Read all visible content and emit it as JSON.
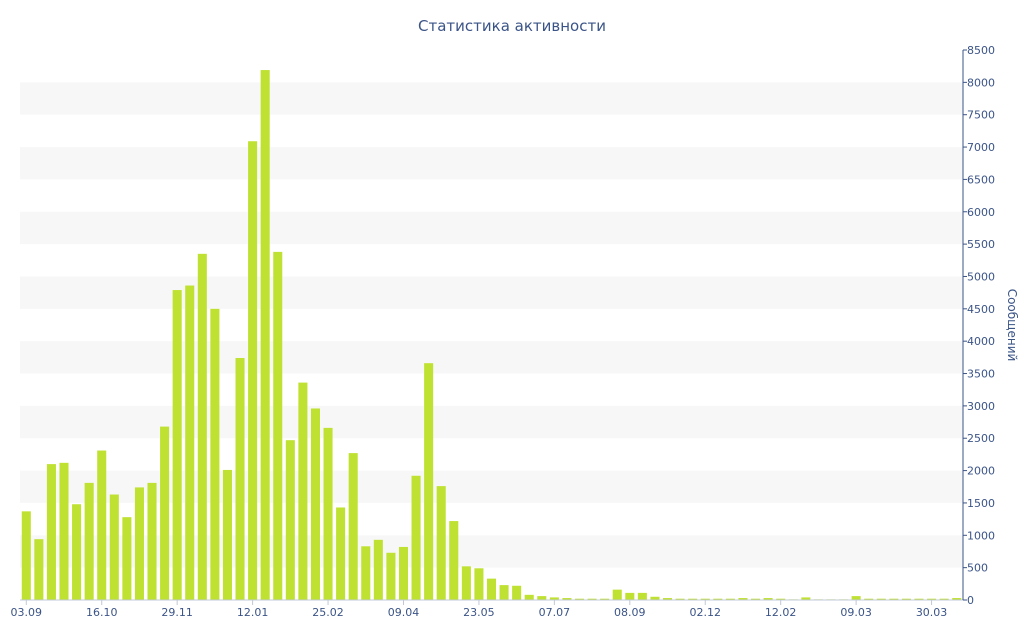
{
  "chart_data": {
    "type": "bar",
    "title": "Статистика активности",
    "xlabel": "",
    "ylabel": "Сообщений",
    "ylim": [
      0,
      8500
    ],
    "y_ticks": [
      "0",
      "500",
      "1000",
      "1500",
      "2000",
      "2500",
      "3000",
      "3500",
      "4000",
      "4500",
      "5000",
      "5500",
      "6000",
      "6500",
      "7000",
      "7500",
      "8000",
      "8500"
    ],
    "x_tick_labels": [
      {
        "index": 0,
        "label": "03.09"
      },
      {
        "index": 6,
        "label": "16.10"
      },
      {
        "index": 12,
        "label": "29.11"
      },
      {
        "index": 18,
        "label": "12.01"
      },
      {
        "index": 24,
        "label": "25.02"
      },
      {
        "index": 30,
        "label": "09.04"
      },
      {
        "index": 36,
        "label": "23.05"
      },
      {
        "index": 42,
        "label": "07.07"
      },
      {
        "index": 48,
        "label": "08.09"
      },
      {
        "index": 54,
        "label": "02.12"
      },
      {
        "index": 60,
        "label": "12.02"
      },
      {
        "index": 66,
        "label": "09.03"
      },
      {
        "index": 72,
        "label": "30.03"
      }
    ],
    "series": [
      {
        "values": [
          1370,
          940,
          2100,
          2120,
          1480,
          1810,
          2310,
          1630,
          1280,
          1740,
          1810,
          2680,
          4790,
          4860,
          5350,
          4500,
          2010,
          3740,
          7090,
          8190,
          5380,
          2470,
          3360,
          2960,
          2660,
          1430,
          2270,
          830,
          930,
          730,
          820,
          1920,
          3660,
          1760,
          1220,
          520,
          490,
          330,
          230,
          220,
          80,
          60,
          40,
          30,
          20,
          20,
          20,
          160,
          110,
          110,
          50,
          30,
          20,
          20,
          20,
          20,
          20,
          30,
          20,
          30,
          20,
          10,
          40,
          10,
          10,
          10,
          60,
          20,
          20,
          20,
          20,
          20,
          20,
          20,
          30
        ]
      }
    ],
    "grid": true,
    "y_axis_position": "right",
    "colors": {
      "bar": "#bfe131",
      "band": "#f7f7f7",
      "axis": "#3b5487",
      "text": "#3b5487"
    }
  }
}
